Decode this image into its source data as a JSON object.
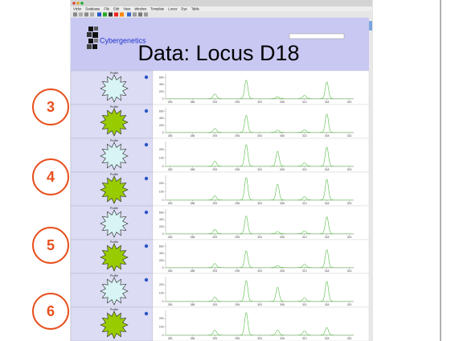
{
  "menu": [
    "Vizler",
    "Database",
    "File",
    "Edit",
    "View",
    "Window",
    "Template",
    "Locus",
    "Dye",
    "Table"
  ],
  "header": {
    "logo_text": "Cybergenetics",
    "title": "Data: Locus D18"
  },
  "annotations": [
    3,
    4,
    5,
    6
  ],
  "xlim": [
    282,
    324
  ],
  "xticks": [
    283,
    288,
    293,
    298,
    303,
    308,
    313,
    318,
    323
  ],
  "rows": [
    {
      "label": "Profile",
      "star_color": "#d8f4f4",
      "ylim": [
        0,
        700
      ],
      "yticks": [
        0,
        200,
        400,
        600
      ],
      "peak_x": [
        293,
        300,
        307,
        313,
        318
      ],
      "peak_heights": [
        130,
        520,
        50,
        90,
        470
      ]
    },
    {
      "label": "Profile",
      "star_color": "#99cc00",
      "ylim": [
        0,
        700
      ],
      "yticks": [
        0,
        200,
        400,
        600
      ],
      "peak_x": [
        293,
        300,
        307,
        313,
        318
      ],
      "peak_heights": [
        110,
        480,
        60,
        70,
        520
      ]
    },
    {
      "label": "Profile",
      "star_color": "#d8f4f4",
      "ylim": [
        0,
        300
      ],
      "yticks": [
        0,
        100,
        200
      ],
      "peak_x": [
        293,
        300,
        307,
        313,
        318
      ],
      "peak_heights": [
        60,
        260,
        180,
        40,
        230
      ]
    },
    {
      "label": "Profile",
      "star_color": "#99cc00",
      "ylim": [
        0,
        300
      ],
      "yticks": [
        0,
        100,
        200
      ],
      "peak_x": [
        293,
        300,
        307,
        313,
        318
      ],
      "peak_heights": [
        50,
        270,
        190,
        40,
        250
      ]
    },
    {
      "label": "Profile",
      "star_color": "#d8f4f4",
      "ylim": [
        0,
        700
      ],
      "yticks": [
        0,
        200,
        400,
        600
      ],
      "peak_x": [
        293,
        300,
        307,
        313,
        318
      ],
      "peak_heights": [
        120,
        500,
        60,
        80,
        480
      ]
    },
    {
      "label": "Profile",
      "star_color": "#99cc00",
      "ylim": [
        0,
        700
      ],
      "yticks": [
        0,
        200,
        400,
        600
      ],
      "peak_x": [
        293,
        300,
        307,
        313,
        318
      ],
      "peak_heights": [
        110,
        470,
        50,
        90,
        500
      ]
    },
    {
      "label": "Profile",
      "star_color": "#d8f4f4",
      "ylim": [
        0,
        300
      ],
      "yticks": [
        0,
        100,
        200
      ],
      "peak_x": [
        293,
        300,
        307,
        313,
        318
      ],
      "peak_heights": [
        50,
        250,
        170,
        40,
        240
      ]
    },
    {
      "label": "Profile",
      "star_color": "#99cc00",
      "ylim": [
        0,
        300
      ],
      "yticks": [
        0,
        100,
        200
      ],
      "peak_x": [
        293,
        300,
        307,
        313,
        318
      ],
      "peak_heights": [
        60,
        270,
        60,
        50,
        90
      ]
    }
  ]
}
